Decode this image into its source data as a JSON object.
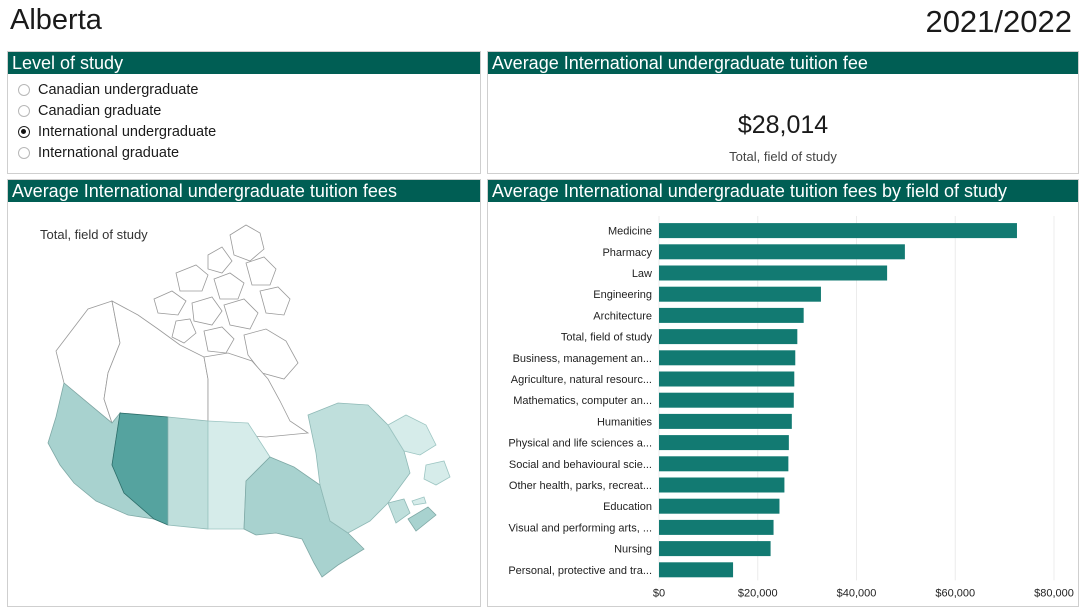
{
  "header": {
    "title": "Alberta",
    "year": "2021/2022"
  },
  "level_panel": {
    "title": "Level of study",
    "options": [
      {
        "label": "Canadian undergraduate",
        "selected": false
      },
      {
        "label": "Canadian graduate",
        "selected": false
      },
      {
        "label": "International undergraduate",
        "selected": true
      },
      {
        "label": "International graduate",
        "selected": false
      }
    ]
  },
  "fee_panel": {
    "title": "Average International undergraduate tuition fee",
    "value": "$28,014",
    "caption": "Total, field of study"
  },
  "map_panel": {
    "title": "Average International undergraduate tuition fees",
    "caption": "Total, field of study",
    "colors": {
      "selected": "#55a39f",
      "high": "#a8d2cf",
      "mid": "#bfdfdc",
      "low": "#d6ecea",
      "none": "#ffffff"
    }
  },
  "bar_panel": {
    "title": "Average International undergraduate tuition fees by field of study"
  },
  "chart_data": {
    "type": "bar",
    "orientation": "horizontal",
    "categories": [
      "Medicine",
      "Pharmacy",
      "Law",
      "Engineering",
      "Architecture",
      "Total, field of study",
      "Business, management an...",
      "Agriculture, natural resourc...",
      "Mathematics, computer an...",
      "Humanities",
      "Physical and life sciences a...",
      "Social and behavioural scie...",
      "Other health, parks, recreat...",
      "Education",
      "Visual and performing arts, ...",
      "Nursing",
      "Personal, protective and tra..."
    ],
    "values": [
      72500,
      49800,
      46200,
      32800,
      29300,
      28014,
      27600,
      27400,
      27300,
      26900,
      26300,
      26200,
      25400,
      24400,
      23200,
      22600,
      15000
    ],
    "xlim": [
      0,
      80000
    ],
    "xticks": [
      0,
      20000,
      40000,
      60000,
      80000
    ],
    "xtick_labels": [
      "$0",
      "$20,000",
      "$40,000",
      "$60,000",
      "$80,000"
    ],
    "bar_color": "#127a72",
    "grid": true
  }
}
